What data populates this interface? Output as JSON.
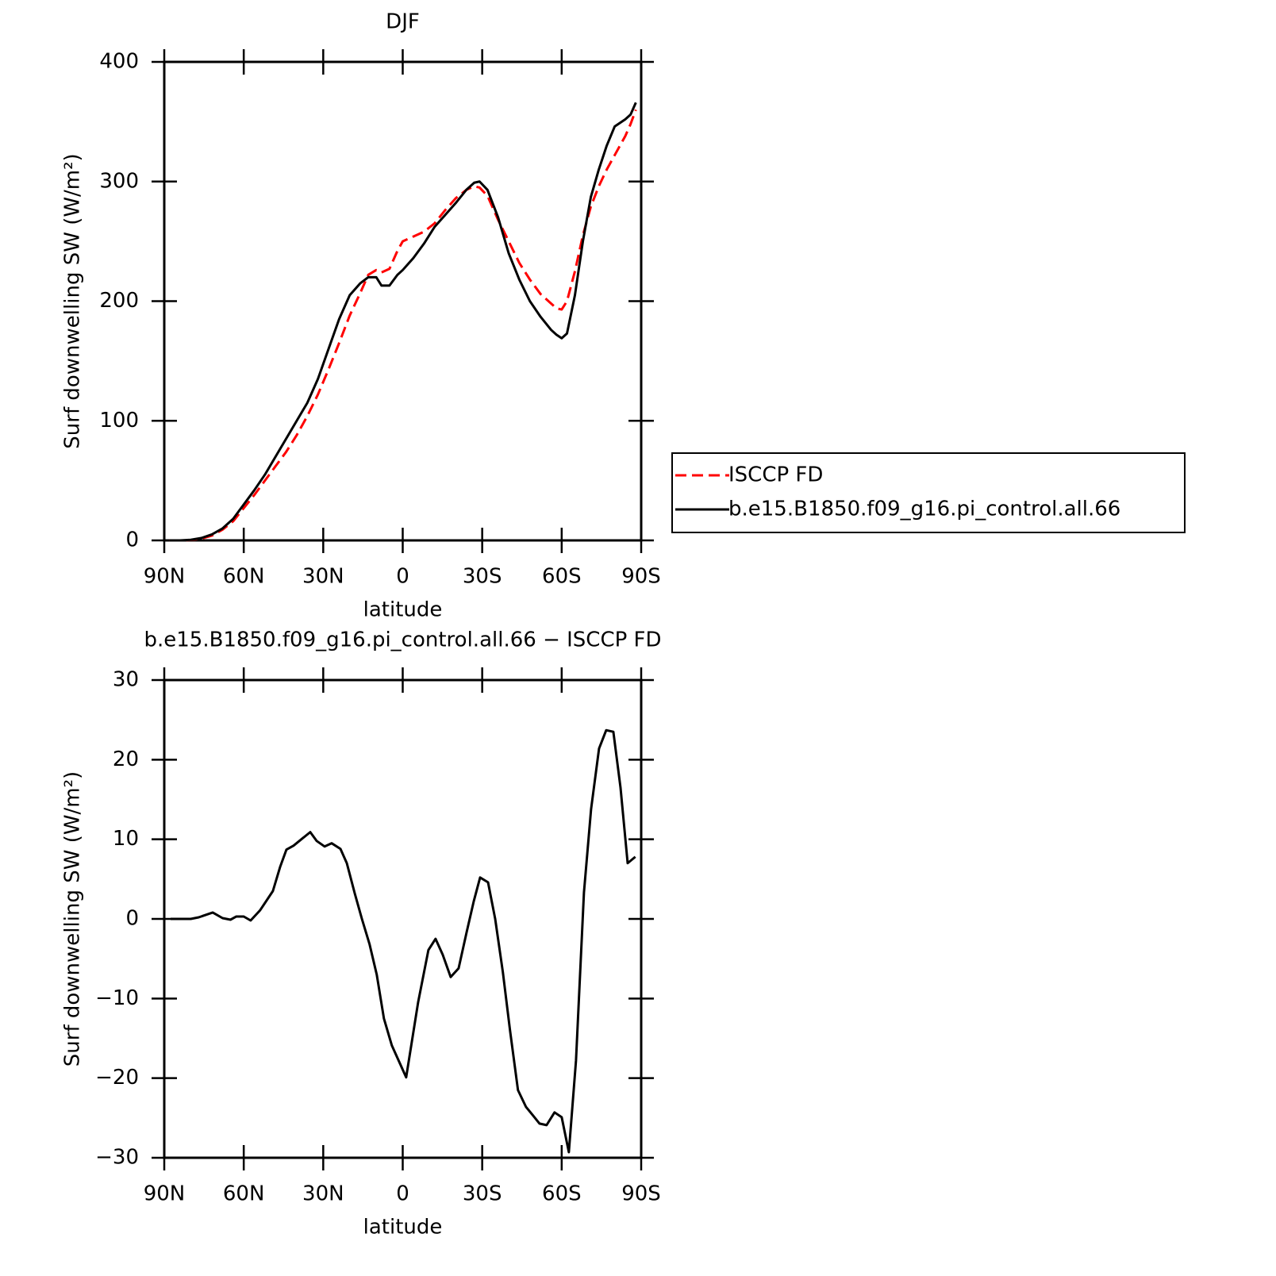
{
  "chart_data": [
    {
      "type": "line",
      "title": "DJF",
      "ylabel": "Surf downwelling SW (W/m²)",
      "xlabel": "latitude",
      "xlim": [
        90,
        -90
      ],
      "ylim": [
        0,
        400
      ],
      "xticks": [
        {
          "value": 90,
          "label": "90N"
        },
        {
          "value": 60,
          "label": "60N"
        },
        {
          "value": 30,
          "label": "30N"
        },
        0,
        {
          "value": -30,
          "label": "30S"
        },
        {
          "value": -60,
          "label": "60S"
        },
        {
          "value": -90,
          "label": "90S"
        }
      ],
      "yticks": [
        0,
        100,
        200,
        300,
        400
      ],
      "legend": "outside-right",
      "x": [
        88,
        84,
        80,
        76,
        72,
        68,
        64,
        60,
        56,
        52,
        48,
        44,
        40,
        36,
        32,
        28,
        24,
        20,
        16,
        13,
        10,
        8,
        5,
        2,
        0,
        -4,
        -8,
        -12,
        -16,
        -20,
        -24,
        -27,
        -29,
        -32,
        -36,
        -40,
        -44,
        -48,
        -52,
        -56,
        -58,
        -60,
        -62,
        -65,
        -68,
        -71,
        -74,
        -77,
        -80,
        -84,
        -86,
        -88
      ],
      "series": [
        {
          "name": "ISCCP FD",
          "color": "#ff0000",
          "linestyle": "dashed",
          "values": [
            0,
            0,
            0.3,
            1.5,
            4,
            9,
            16,
            27,
            38,
            50,
            62,
            74,
            88,
            104,
            122,
            143,
            165,
            188,
            207,
            222,
            226,
            224,
            227,
            242,
            250,
            254,
            258,
            265,
            276,
            286,
            293,
            296,
            295,
            288,
            268,
            250,
            232,
            218,
            206,
            198,
            194,
            193,
            200,
            225,
            255,
            279,
            296,
            310,
            322,
            338,
            348,
            360
          ]
        },
        {
          "name": "b.e15.B1850.f09_g16.pi_control.all.66",
          "color": "#000000",
          "linestyle": "solid",
          "values": [
            0,
            0,
            0.5,
            2,
            5,
            10,
            18,
            30,
            42,
            55,
            70,
            85,
            100,
            115,
            135,
            160,
            185,
            205,
            215,
            220,
            220,
            213,
            213,
            222,
            226,
            236,
            248,
            262,
            272,
            282,
            293,
            299,
            300,
            293,
            270,
            240,
            218,
            200,
            187,
            176,
            172,
            169,
            173,
            205,
            250,
            287,
            310,
            330,
            346,
            352,
            356,
            366
          ]
        }
      ]
    },
    {
      "type": "line",
      "title": "b.e15.B1850.f09_g16.pi_control.all.66 − ISCCP FD",
      "ylabel": "Surf downwelling SW (W/m²)",
      "xlabel": "latitude",
      "xlim": [
        90,
        -90
      ],
      "ylim": [
        -30,
        30
      ],
      "xticks": [
        {
          "value": 90,
          "label": "90N"
        },
        {
          "value": 60,
          "label": "60N"
        },
        {
          "value": 30,
          "label": "30N"
        },
        0,
        {
          "value": -30,
          "label": "30S"
        },
        {
          "value": -60,
          "label": "60S"
        },
        {
          "value": -90,
          "label": "90S"
        }
      ],
      "yticks": [
        {
          "value": -30,
          "label": "−30"
        },
        {
          "value": -20,
          "label": "−20"
        },
        {
          "value": -10,
          "label": "−10"
        },
        0,
        10,
        20,
        30
      ],
      "x": [
        87.6,
        80,
        77,
        71.7,
        68,
        65,
        62.8,
        60,
        57.4,
        53.8,
        49,
        46.3,
        43.9,
        41.2,
        37.9,
        34.9,
        32.5,
        29.5,
        26.8,
        23.5,
        21.1,
        18.1,
        15.4,
        12.5,
        9.8,
        7.1,
        4.1,
        -1.3,
        -5.8,
        -9.7,
        -12.4,
        -15.1,
        -18.1,
        -21.1,
        -24.1,
        -26.8,
        -29.2,
        -32.2,
        -34.9,
        -37.8,
        -40.5,
        -43.5,
        -46.5,
        -49.2,
        -51.6,
        -54.3,
        -57.3,
        -60,
        -62.7,
        -65.4,
        -68.4,
        -71.1,
        -74.1,
        -76.8,
        -79.5,
        -82.2,
        -84.9,
        -87.8
      ],
      "series": [
        {
          "color": "#000000",
          "linestyle": "solid",
          "values": [
            0,
            0,
            0.2,
            0.8,
            0.1,
            -0.1,
            0.3,
            0.3,
            -0.2,
            1.1,
            3.5,
            6.5,
            8.7,
            9.2,
            10.1,
            10.9,
            9.8,
            9.1,
            9.5,
            8.8,
            7,
            3.2,
            0,
            -3.2,
            -7,
            -12.5,
            -15.9,
            -19.9,
            -10.5,
            -3.9,
            -2.5,
            -4.5,
            -7.3,
            -6.2,
            -1.7,
            2.2,
            5.2,
            4.6,
            0,
            -6.7,
            -14,
            -21.5,
            -23.6,
            -24.7,
            -25.7,
            -25.9,
            -24.3,
            -24.9,
            -29.3,
            -17.8,
            3.3,
            13.8,
            21.4,
            23.7,
            23.5,
            16.5,
            7,
            7.8
          ]
        }
      ]
    }
  ]
}
